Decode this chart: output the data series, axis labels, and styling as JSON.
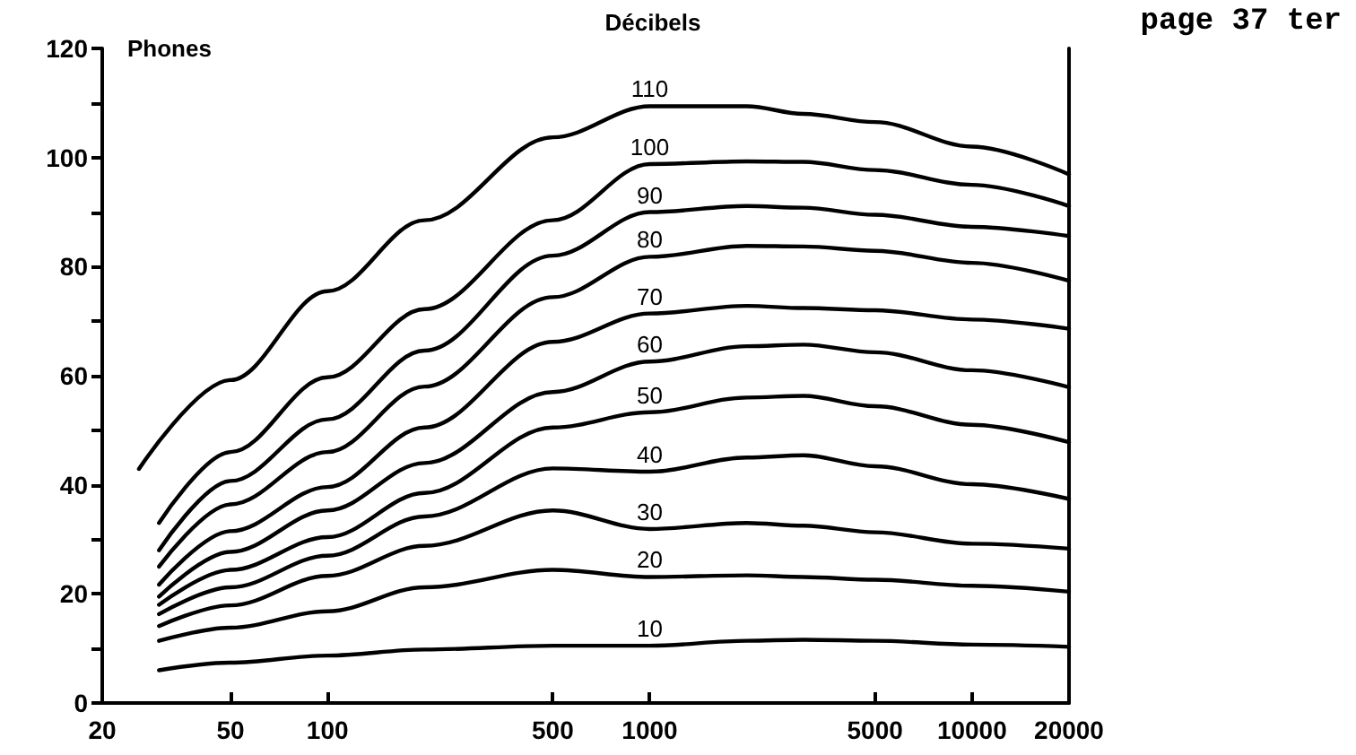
{
  "chart_data": {
    "type": "line",
    "ylabel": "Phones",
    "legend_title": "Décibels",
    "annotations": [
      "page 37 ter"
    ],
    "x": [
      30,
      50,
      100,
      200,
      500,
      1000,
      2000,
      3000,
      5000,
      10000,
      20000
    ],
    "series": [
      {
        "name": "110",
        "color": "#000000",
        "x": [
          26,
          50,
          100,
          200,
          500,
          1000,
          2000,
          3000,
          5000,
          10000,
          20000
        ],
        "values": [
          42.9,
          59.2,
          75.5,
          88.5,
          103.7,
          109.4,
          109.4,
          108,
          106.5,
          102,
          96.9
        ]
      },
      {
        "name": "100",
        "color": "#000000",
        "values": [
          33,
          46,
          59.7,
          72.2,
          88.5,
          98.8,
          99.3,
          99.2,
          97.7,
          95,
          91.1
        ]
      },
      {
        "name": "90",
        "color": "#000000",
        "values": [
          28,
          40.7,
          52,
          64.6,
          82,
          90,
          91.1,
          90.8,
          89.5,
          87.3,
          85.6
        ]
      },
      {
        "name": "80",
        "color": "#000000",
        "values": [
          25,
          36.4,
          46,
          58,
          74.4,
          81.8,
          83.8,
          83.7,
          82.9,
          80.7,
          77.4
        ]
      },
      {
        "name": "70",
        "color": "#000000",
        "values": [
          21.7,
          31.5,
          39.6,
          50.5,
          66.2,
          71.4,
          72.8,
          72.4,
          72,
          70.3,
          68.6
        ]
      },
      {
        "name": "60",
        "color": "#000000",
        "values": [
          19.5,
          27.7,
          35.3,
          44,
          57,
          62.6,
          65.4,
          65.7,
          64.3,
          61,
          57.9
        ]
      },
      {
        "name": "50",
        "color": "#000000",
        "values": [
          18,
          24.4,
          30.4,
          38.5,
          50.5,
          53.3,
          56,
          56.3,
          54.4,
          51,
          47.8
        ]
      },
      {
        "name": "40",
        "color": "#000000",
        "values": [
          16.3,
          21.2,
          27,
          34.2,
          43,
          42.4,
          45,
          45.4,
          43.4,
          40.1,
          37.4
        ]
      },
      {
        "name": "30",
        "color": "#000000",
        "values": [
          14.1,
          17.9,
          23.3,
          28.8,
          35.3,
          31.9,
          33,
          32.5,
          31.3,
          29.2,
          28.3
        ]
      },
      {
        "name": "20",
        "color": "#000000",
        "values": [
          11.4,
          13.8,
          16.8,
          21.2,
          24.4,
          23.1,
          23.4,
          23.1,
          22.6,
          21.5,
          20.4
        ]
      },
      {
        "name": "10",
        "color": "#000000",
        "values": [
          6,
          7.4,
          8.7,
          9.8,
          10.5,
          10.5,
          11.4,
          11.6,
          11.4,
          10.7,
          10.3
        ]
      }
    ],
    "log": "x",
    "xlim": [
      20,
      20000
    ],
    "xticks": [
      20,
      50,
      100,
      500,
      1000,
      5000,
      10000,
      20000
    ],
    "ylim": [
      0,
      120
    ],
    "yticks": [
      0,
      {
        "value": 10,
        "label": null
      },
      20,
      {
        "value": 30,
        "label": null
      },
      40,
      {
        "value": 50,
        "label": null
      },
      60,
      {
        "value": 70,
        "label": null
      },
      80,
      {
        "value": 90,
        "label": null
      },
      100,
      {
        "value": 110,
        "label": null
      },
      120
    ],
    "grid": false,
    "legend": false,
    "marker": "none",
    "line_style": "solid"
  }
}
